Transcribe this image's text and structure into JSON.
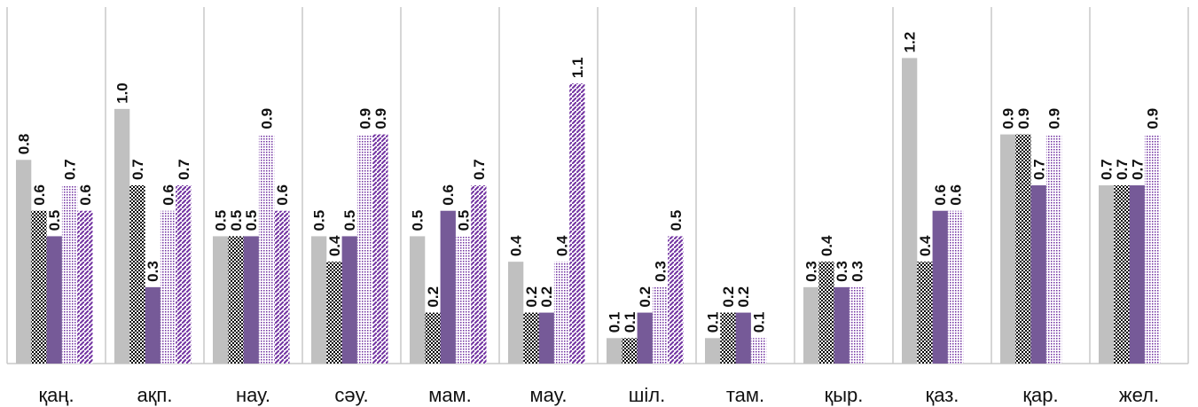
{
  "chart_data": {
    "type": "bar",
    "title": "",
    "xlabel": "",
    "ylabel": "",
    "ylim": [
      0,
      1.4
    ],
    "grid": "vertical-category-separators",
    "legend": "none",
    "categories": [
      "қаң.",
      "ақп.",
      "нау.",
      "сәу.",
      "мам.",
      "мау.",
      "шіл.",
      "там.",
      "қыр.",
      "қаз.",
      "қар.",
      "жел."
    ],
    "series": [
      {
        "values": [
          0.8,
          1.0,
          0.5,
          0.5,
          0.5,
          0.4,
          0.1,
          0.1,
          0.3,
          1.2,
          0.9,
          0.7
        ],
        "color": "#c0c0c0",
        "fill": "solid"
      },
      {
        "values": [
          0.6,
          0.7,
          0.5,
          0.4,
          0.2,
          0.2,
          0.1,
          0.2,
          0.4,
          0.4,
          0.9,
          0.7
        ],
        "color": "#000000",
        "fill": "checker"
      },
      {
        "values": [
          0.5,
          0.3,
          0.5,
          0.5,
          0.6,
          0.2,
          0.2,
          0.2,
          0.3,
          0.6,
          0.7,
          0.7
        ],
        "color": "#765a98",
        "fill": "solid"
      },
      {
        "values": [
          0.7,
          0.6,
          0.9,
          0.9,
          0.5,
          0.4,
          0.3,
          0.1,
          0.3,
          0.6,
          0.9,
          0.9
        ],
        "color": "#7030a0",
        "fill": "dots"
      },
      {
        "values": [
          0.6,
          0.7,
          0.6,
          0.9,
          0.7,
          1.1,
          0.5,
          null,
          null,
          null,
          null,
          null
        ],
        "color": "#7030a0",
        "fill": "diagonal"
      }
    ]
  }
}
